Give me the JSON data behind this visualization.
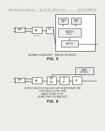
{
  "bg_color": "#eeece8",
  "header_text": "Patent Application Publication",
  "header_date": "Apr. 28, 2011 / Sheet 6 of 10",
  "header_num": "US 2011/0098661 A1",
  "fig5_label": "FIG. 5",
  "fig5_caption": "ACTIVATE FLUORESCENT   TURN ON THE SWITCH",
  "fig6_label": "FIG. 6",
  "fig6_caption_line1": "INITIATE TURNS OFF OF THE SWITCH AT THE APPROPRIATE TIME",
  "fig6_caption_line2": "T TYPE TIMER OR A TYPE TIMER",
  "fig6_caption_line3": "ENABLE ITS FADE TO OFF",
  "fig6_caption_line4": "OPERATE SWITCH AT NEAR ZERO",
  "lc": "#555555",
  "tc": "#333333",
  "wc": "#ffffff",
  "gc": "#cccccc"
}
